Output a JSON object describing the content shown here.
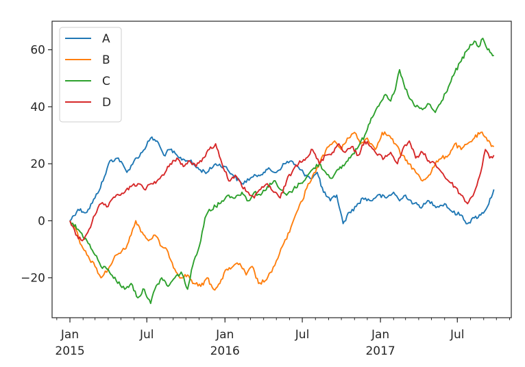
{
  "chart_data": {
    "type": "line",
    "title": "",
    "xlabel": "",
    "ylabel": "",
    "x_range": [
      "2014-11-20",
      "2017-11-05"
    ],
    "ylim": [
      -34,
      70
    ],
    "grid": false,
    "legend_position": "top-left",
    "x_ticks": [
      {
        "date": "2015-01-01",
        "label": "Jan",
        "sublabel": "2015"
      },
      {
        "date": "2015-07-01",
        "label": "Jul",
        "sublabel": ""
      },
      {
        "date": "2016-01-01",
        "label": "Jan",
        "sublabel": "2016"
      },
      {
        "date": "2016-07-01",
        "label": "Jul",
        "sublabel": ""
      },
      {
        "date": "2017-01-01",
        "label": "Jan",
        "sublabel": "2017"
      },
      {
        "date": "2017-07-01",
        "label": "Jul",
        "sublabel": ""
      }
    ],
    "y_ticks": [
      {
        "value": -20,
        "label": "−20"
      },
      {
        "value": 0,
        "label": "0"
      },
      {
        "value": 20,
        "label": "20"
      },
      {
        "value": 40,
        "label": "40"
      },
      {
        "value": 60,
        "label": "60"
      }
    ],
    "series": [
      {
        "name": "A",
        "color": "#1f77b4",
        "points": [
          [
            "2015-01-01",
            0
          ],
          [
            "2015-01-20",
            4
          ],
          [
            "2015-02-10",
            3
          ],
          [
            "2015-03-01",
            8
          ],
          [
            "2015-03-20",
            14
          ],
          [
            "2015-04-05",
            21
          ],
          [
            "2015-04-25",
            22
          ],
          [
            "2015-05-15",
            17
          ],
          [
            "2015-06-01",
            21
          ],
          [
            "2015-06-20",
            24
          ],
          [
            "2015-07-10",
            29
          ],
          [
            "2015-07-25",
            28
          ],
          [
            "2015-08-10",
            23
          ],
          [
            "2015-08-25",
            25
          ],
          [
            "2015-09-15",
            22
          ],
          [
            "2015-10-10",
            21
          ],
          [
            "2015-11-01",
            18
          ],
          [
            "2015-11-20",
            17
          ],
          [
            "2015-12-10",
            20
          ],
          [
            "2016-01-01",
            19
          ],
          [
            "2016-01-20",
            16
          ],
          [
            "2016-02-10",
            13
          ],
          [
            "2016-03-01",
            15
          ],
          [
            "2016-03-20",
            16
          ],
          [
            "2016-04-10",
            18
          ],
          [
            "2016-05-01",
            17
          ],
          [
            "2016-05-20",
            20
          ],
          [
            "2016-06-05",
            21
          ],
          [
            "2016-06-25",
            18
          ],
          [
            "2016-07-10",
            16
          ],
          [
            "2016-07-25",
            15
          ],
          [
            "2016-08-05",
            17
          ],
          [
            "2016-08-20",
            10
          ],
          [
            "2016-09-05",
            7
          ],
          [
            "2016-09-20",
            9
          ],
          [
            "2016-10-05",
            -1
          ],
          [
            "2016-10-20",
            3
          ],
          [
            "2016-11-05",
            5
          ],
          [
            "2016-11-20",
            8
          ],
          [
            "2016-12-10",
            7
          ],
          [
            "2016-12-25",
            9
          ],
          [
            "2017-01-15",
            8
          ],
          [
            "2017-02-01",
            10
          ],
          [
            "2017-02-15",
            7
          ],
          [
            "2017-03-01",
            9
          ],
          [
            "2017-03-20",
            6
          ],
          [
            "2017-04-10",
            5
          ],
          [
            "2017-04-25",
            7
          ],
          [
            "2017-05-15",
            5
          ],
          [
            "2017-06-01",
            6
          ],
          [
            "2017-06-20",
            3
          ],
          [
            "2017-07-10",
            2
          ],
          [
            "2017-07-25",
            -1
          ],
          [
            "2017-08-10",
            1
          ],
          [
            "2017-08-25",
            2
          ],
          [
            "2017-09-10",
            5
          ],
          [
            "2017-09-25",
            11
          ]
        ]
      },
      {
        "name": "B",
        "color": "#ff7f0e",
        "points": [
          [
            "2015-01-01",
            0
          ],
          [
            "2015-01-15",
            -3
          ],
          [
            "2015-01-25",
            -8
          ],
          [
            "2015-02-10",
            -12
          ],
          [
            "2015-03-01",
            -16
          ],
          [
            "2015-03-15",
            -20
          ],
          [
            "2015-04-01",
            -17
          ],
          [
            "2015-04-20",
            -12
          ],
          [
            "2015-05-10",
            -10
          ],
          [
            "2015-05-25",
            -5
          ],
          [
            "2015-06-05",
            0
          ],
          [
            "2015-06-20",
            -4
          ],
          [
            "2015-07-05",
            -7
          ],
          [
            "2015-07-20",
            -5
          ],
          [
            "2015-08-05",
            -9
          ],
          [
            "2015-08-20",
            -11
          ],
          [
            "2015-09-05",
            -17
          ],
          [
            "2015-09-20",
            -20
          ],
          [
            "2015-10-05",
            -19
          ],
          [
            "2015-10-20",
            -22
          ],
          [
            "2015-11-05",
            -23
          ],
          [
            "2015-11-20",
            -20
          ],
          [
            "2015-12-05",
            -24
          ],
          [
            "2015-12-20",
            -22
          ],
          [
            "2016-01-05",
            -17
          ],
          [
            "2016-01-20",
            -16
          ],
          [
            "2016-02-05",
            -15
          ],
          [
            "2016-02-20",
            -19
          ],
          [
            "2016-03-05",
            -16
          ],
          [
            "2016-03-20",
            -22
          ],
          [
            "2016-04-05",
            -21
          ],
          [
            "2016-04-20",
            -18
          ],
          [
            "2016-05-01",
            -14
          ],
          [
            "2016-05-15",
            -9
          ],
          [
            "2016-06-01",
            -4
          ],
          [
            "2016-06-15",
            2
          ],
          [
            "2016-07-01",
            7
          ],
          [
            "2016-07-15",
            13
          ],
          [
            "2016-08-01",
            17
          ],
          [
            "2016-08-15",
            22
          ],
          [
            "2016-09-01",
            26
          ],
          [
            "2016-09-15",
            28
          ],
          [
            "2016-10-01",
            25
          ],
          [
            "2016-10-15",
            29
          ],
          [
            "2016-11-01",
            31
          ],
          [
            "2016-11-15",
            27
          ],
          [
            "2016-12-01",
            29
          ],
          [
            "2016-12-20",
            25
          ],
          [
            "2017-01-05",
            31
          ],
          [
            "2017-01-20",
            30
          ],
          [
            "2017-02-05",
            27
          ],
          [
            "2017-02-20",
            23
          ],
          [
            "2017-03-10",
            20
          ],
          [
            "2017-03-25",
            17
          ],
          [
            "2017-04-10",
            14
          ],
          [
            "2017-04-25",
            16
          ],
          [
            "2017-05-10",
            20
          ],
          [
            "2017-05-25",
            22
          ],
          [
            "2017-06-10",
            23
          ],
          [
            "2017-06-25",
            27
          ],
          [
            "2017-07-10",
            25
          ],
          [
            "2017-07-25",
            27
          ],
          [
            "2017-08-10",
            29
          ],
          [
            "2017-08-25",
            31
          ],
          [
            "2017-09-10",
            28
          ],
          [
            "2017-09-25",
            26
          ]
        ]
      },
      {
        "name": "C",
        "color": "#2ca02c",
        "points": [
          [
            "2015-01-01",
            0
          ],
          [
            "2015-01-20",
            -3
          ],
          [
            "2015-02-10",
            -7
          ],
          [
            "2015-03-01",
            -12
          ],
          [
            "2015-03-15",
            -16
          ],
          [
            "2015-04-01",
            -17
          ],
          [
            "2015-04-20",
            -21
          ],
          [
            "2015-05-10",
            -24
          ],
          [
            "2015-05-25",
            -22
          ],
          [
            "2015-06-10",
            -27
          ],
          [
            "2015-06-25",
            -24
          ],
          [
            "2015-07-10",
            -29
          ],
          [
            "2015-07-20",
            -24
          ],
          [
            "2015-08-05",
            -20
          ],
          [
            "2015-08-20",
            -23
          ],
          [
            "2015-09-05",
            -20
          ],
          [
            "2015-09-20",
            -18
          ],
          [
            "2015-10-05",
            -24
          ],
          [
            "2015-10-20",
            -14
          ],
          [
            "2015-11-05",
            -7
          ],
          [
            "2015-11-15",
            1
          ],
          [
            "2015-11-25",
            4
          ],
          [
            "2015-12-10",
            5
          ],
          [
            "2015-12-25",
            7
          ],
          [
            "2016-01-10",
            9
          ],
          [
            "2016-01-25",
            8
          ],
          [
            "2016-02-10",
            10
          ],
          [
            "2016-02-25",
            7
          ],
          [
            "2016-03-10",
            10
          ],
          [
            "2016-03-25",
            9
          ],
          [
            "2016-04-10",
            12
          ],
          [
            "2016-04-25",
            14
          ],
          [
            "2016-05-10",
            11
          ],
          [
            "2016-05-25",
            9
          ],
          [
            "2016-06-10",
            11
          ],
          [
            "2016-06-25",
            13
          ],
          [
            "2016-07-10",
            15
          ],
          [
            "2016-07-25",
            18
          ],
          [
            "2016-08-10",
            20
          ],
          [
            "2016-08-25",
            17
          ],
          [
            "2016-09-10",
            15
          ],
          [
            "2016-09-25",
            18
          ],
          [
            "2016-10-10",
            20
          ],
          [
            "2016-10-25",
            23
          ],
          [
            "2016-11-10",
            26
          ],
          [
            "2016-11-25",
            30
          ],
          [
            "2016-12-10",
            36
          ],
          [
            "2016-12-25",
            40
          ],
          [
            "2017-01-10",
            44
          ],
          [
            "2017-01-25",
            42
          ],
          [
            "2017-02-05",
            46
          ],
          [
            "2017-02-15",
            53
          ],
          [
            "2017-02-25",
            48
          ],
          [
            "2017-03-10",
            43
          ],
          [
            "2017-03-25",
            40
          ],
          [
            "2017-04-10",
            39
          ],
          [
            "2017-04-25",
            41
          ],
          [
            "2017-05-10",
            38
          ],
          [
            "2017-05-25",
            42
          ],
          [
            "2017-06-10",
            47
          ],
          [
            "2017-06-25",
            52
          ],
          [
            "2017-07-10",
            56
          ],
          [
            "2017-07-25",
            60
          ],
          [
            "2017-08-10",
            63
          ],
          [
            "2017-08-20",
            61
          ],
          [
            "2017-08-30",
            64
          ],
          [
            "2017-09-10",
            60
          ],
          [
            "2017-09-25",
            58
          ]
        ]
      },
      {
        "name": "D",
        "color": "#d62728",
        "points": [
          [
            "2015-01-01",
            0
          ],
          [
            "2015-01-15",
            -5
          ],
          [
            "2015-01-30",
            -7
          ],
          [
            "2015-02-15",
            -3
          ],
          [
            "2015-03-01",
            2
          ],
          [
            "2015-03-15",
            6
          ],
          [
            "2015-04-01",
            5
          ],
          [
            "2015-04-20",
            9
          ],
          [
            "2015-05-10",
            10
          ],
          [
            "2015-05-25",
            12
          ],
          [
            "2015-06-10",
            13
          ],
          [
            "2015-06-25",
            11
          ],
          [
            "2015-07-10",
            13
          ],
          [
            "2015-07-25",
            14
          ],
          [
            "2015-08-10",
            16
          ],
          [
            "2015-08-25",
            20
          ],
          [
            "2015-09-10",
            22
          ],
          [
            "2015-09-25",
            19
          ],
          [
            "2015-10-10",
            21
          ],
          [
            "2015-10-25",
            19
          ],
          [
            "2015-11-10",
            22
          ],
          [
            "2015-11-25",
            25
          ],
          [
            "2015-12-10",
            27
          ],
          [
            "2015-12-25",
            20
          ],
          [
            "2016-01-10",
            14
          ],
          [
            "2016-01-25",
            16
          ],
          [
            "2016-02-10",
            12
          ],
          [
            "2016-02-25",
            10
          ],
          [
            "2016-03-10",
            8
          ],
          [
            "2016-03-25",
            11
          ],
          [
            "2016-04-10",
            13
          ],
          [
            "2016-04-25",
            10
          ],
          [
            "2016-05-10",
            8
          ],
          [
            "2016-05-25",
            14
          ],
          [
            "2016-06-10",
            18
          ],
          [
            "2016-06-25",
            21
          ],
          [
            "2016-07-10",
            22
          ],
          [
            "2016-07-25",
            25
          ],
          [
            "2016-08-10",
            20
          ],
          [
            "2016-08-25",
            23
          ],
          [
            "2016-09-10",
            24
          ],
          [
            "2016-09-25",
            27
          ],
          [
            "2016-10-10",
            24
          ],
          [
            "2016-10-25",
            26
          ],
          [
            "2016-11-10",
            23
          ],
          [
            "2016-11-25",
            28
          ],
          [
            "2016-12-10",
            26
          ],
          [
            "2016-12-25",
            23
          ],
          [
            "2017-01-10",
            22
          ],
          [
            "2017-01-25",
            24
          ],
          [
            "2017-02-10",
            20
          ],
          [
            "2017-02-25",
            26
          ],
          [
            "2017-03-10",
            28
          ],
          [
            "2017-03-25",
            22
          ],
          [
            "2017-04-10",
            24
          ],
          [
            "2017-04-25",
            21
          ],
          [
            "2017-05-10",
            20
          ],
          [
            "2017-05-25",
            17
          ],
          [
            "2017-06-10",
            14
          ],
          [
            "2017-06-25",
            12
          ],
          [
            "2017-07-10",
            9
          ],
          [
            "2017-07-25",
            6
          ],
          [
            "2017-08-10",
            10
          ],
          [
            "2017-08-25",
            17
          ],
          [
            "2017-09-05",
            25
          ],
          [
            "2017-09-15",
            22
          ],
          [
            "2017-09-25",
            23
          ]
        ]
      }
    ]
  }
}
